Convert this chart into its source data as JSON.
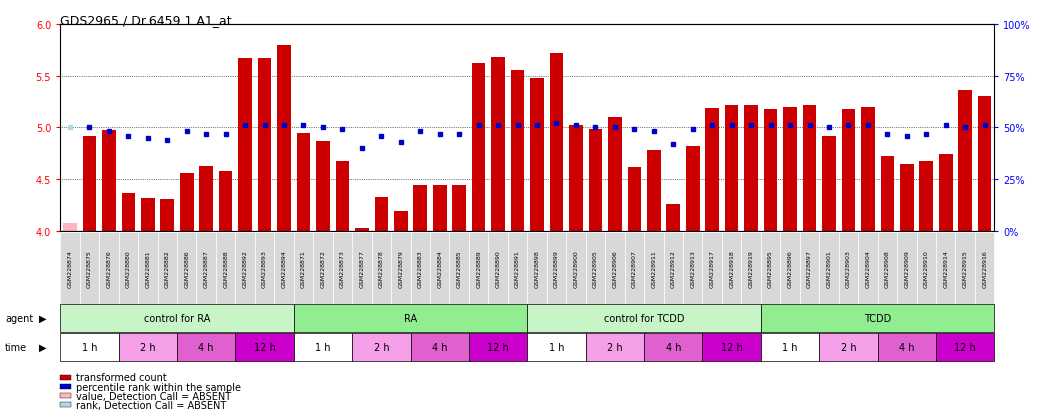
{
  "title": "GDS2965 / Dr.6459.1.A1_at",
  "gsm_labels": [
    "GSM228874",
    "GSM228875",
    "GSM228876",
    "GSM228880",
    "GSM228881",
    "GSM228882",
    "GSM228886",
    "GSM228887",
    "GSM228888",
    "GSM228892",
    "GSM228893",
    "GSM228894",
    "GSM228871",
    "GSM228872",
    "GSM228873",
    "GSM228877",
    "GSM228878",
    "GSM228879",
    "GSM228883",
    "GSM228884",
    "GSM228885",
    "GSM228889",
    "GSM228890",
    "GSM228891",
    "GSM228898",
    "GSM228899",
    "GSM228900",
    "GSM228905",
    "GSM228906",
    "GSM228907",
    "GSM228911",
    "GSM228912",
    "GSM228913",
    "GSM228917",
    "GSM228918",
    "GSM228919",
    "GSM228895",
    "GSM228896",
    "GSM228897",
    "GSM228901",
    "GSM228903",
    "GSM228904",
    "GSM228908",
    "GSM228909",
    "GSM228910",
    "GSM228914",
    "GSM228915",
    "GSM228916"
  ],
  "bar_values": [
    4.08,
    4.92,
    4.97,
    4.37,
    4.32,
    4.31,
    4.56,
    4.63,
    4.58,
    5.67,
    5.67,
    5.8,
    4.95,
    4.87,
    4.67,
    4.03,
    4.33,
    4.19,
    4.44,
    4.44,
    4.44,
    5.62,
    5.68,
    5.55,
    5.48,
    5.72,
    5.02,
    4.98,
    5.1,
    4.62,
    4.78,
    4.26,
    4.82,
    5.19,
    5.22,
    5.22,
    5.18,
    5.2,
    5.22,
    4.92,
    5.18,
    5.2,
    4.72,
    4.65,
    4.67,
    4.74,
    5.36,
    5.3
  ],
  "bar_absent": [
    true,
    false,
    false,
    false,
    false,
    false,
    false,
    false,
    false,
    false,
    false,
    false,
    false,
    false,
    false,
    false,
    false,
    false,
    false,
    false,
    false,
    false,
    false,
    false,
    false,
    false,
    false,
    false,
    false,
    false,
    false,
    false,
    false,
    false,
    false,
    false,
    false,
    false,
    false,
    false,
    false,
    false,
    false,
    false,
    false,
    false,
    false,
    false
  ],
  "percentile_values": [
    50,
    50,
    48,
    46,
    45,
    44,
    48,
    47,
    47,
    51,
    51,
    51,
    51,
    50,
    49,
    40,
    46,
    43,
    48,
    47,
    47,
    51,
    51,
    51,
    51,
    52,
    51,
    50,
    50,
    49,
    48,
    42,
    49,
    51,
    51,
    51,
    51,
    51,
    51,
    50,
    51,
    51,
    47,
    46,
    47,
    51,
    50,
    51
  ],
  "percentile_absent": [
    true,
    false,
    false,
    false,
    false,
    false,
    false,
    false,
    false,
    false,
    false,
    false,
    false,
    false,
    false,
    false,
    false,
    false,
    false,
    false,
    false,
    false,
    false,
    false,
    false,
    false,
    false,
    false,
    false,
    false,
    false,
    false,
    false,
    false,
    false,
    false,
    false,
    false,
    false,
    false,
    false,
    false,
    false,
    false,
    false,
    false,
    false,
    false
  ],
  "agent_labels": [
    "control for RA",
    "RA",
    "control for TCDD",
    "TCDD"
  ],
  "agent_starts": [
    0,
    12,
    24,
    36
  ],
  "agent_ends": [
    12,
    24,
    36,
    48
  ],
  "agent_colors": [
    "#c8f5c8",
    "#90EE90",
    "#c8f5c8",
    "#90EE90"
  ],
  "time_starts": [
    0,
    3,
    6,
    9,
    12,
    15,
    18,
    21,
    24,
    27,
    30,
    33,
    36,
    39,
    42,
    45
  ],
  "time_ends": [
    3,
    6,
    9,
    12,
    15,
    18,
    21,
    24,
    27,
    30,
    33,
    36,
    39,
    42,
    45,
    48
  ],
  "time_labels": [
    "1 h",
    "2 h",
    "4 h",
    "12 h",
    "1 h",
    "2 h",
    "4 h",
    "12 h",
    "1 h",
    "2 h",
    "4 h",
    "12 h",
    "1 h",
    "2 h",
    "4 h",
    "12 h"
  ],
  "time_colors": [
    "#ffffff",
    "#f5a0e8",
    "#e060d0",
    "#cc00cc",
    "#ffffff",
    "#f5a0e8",
    "#e060d0",
    "#cc00cc",
    "#ffffff",
    "#f5a0e8",
    "#e060d0",
    "#cc00cc",
    "#ffffff",
    "#f5a0e8",
    "#e060d0",
    "#cc00cc"
  ],
  "ylim": [
    4.0,
    6.0
  ],
  "yticks_left": [
    4.0,
    4.5,
    5.0,
    5.5,
    6.0
  ],
  "yticks_right": [
    0,
    25,
    50,
    75,
    100
  ],
  "yticks_right_labels": [
    "0%",
    "25%",
    "50%",
    "75%",
    "100%"
  ],
  "bar_color_normal": "#CC0000",
  "bar_color_absent": "#FFB6C1",
  "dot_color_normal": "#0000CC",
  "dot_color_absent": "#ADD8E6",
  "grid_dotted_ticks": [
    4.5,
    5.0,
    5.5
  ],
  "legend_items": [
    {
      "color": "#CC0000",
      "label": "transformed count",
      "marker": "square"
    },
    {
      "color": "#0000CC",
      "label": "percentile rank within the sample",
      "marker": "square"
    },
    {
      "color": "#FFB6C1",
      "label": "value, Detection Call = ABSENT",
      "marker": "square"
    },
    {
      "color": "#ADD8E6",
      "label": "rank, Detection Call = ABSENT",
      "marker": "square"
    }
  ]
}
